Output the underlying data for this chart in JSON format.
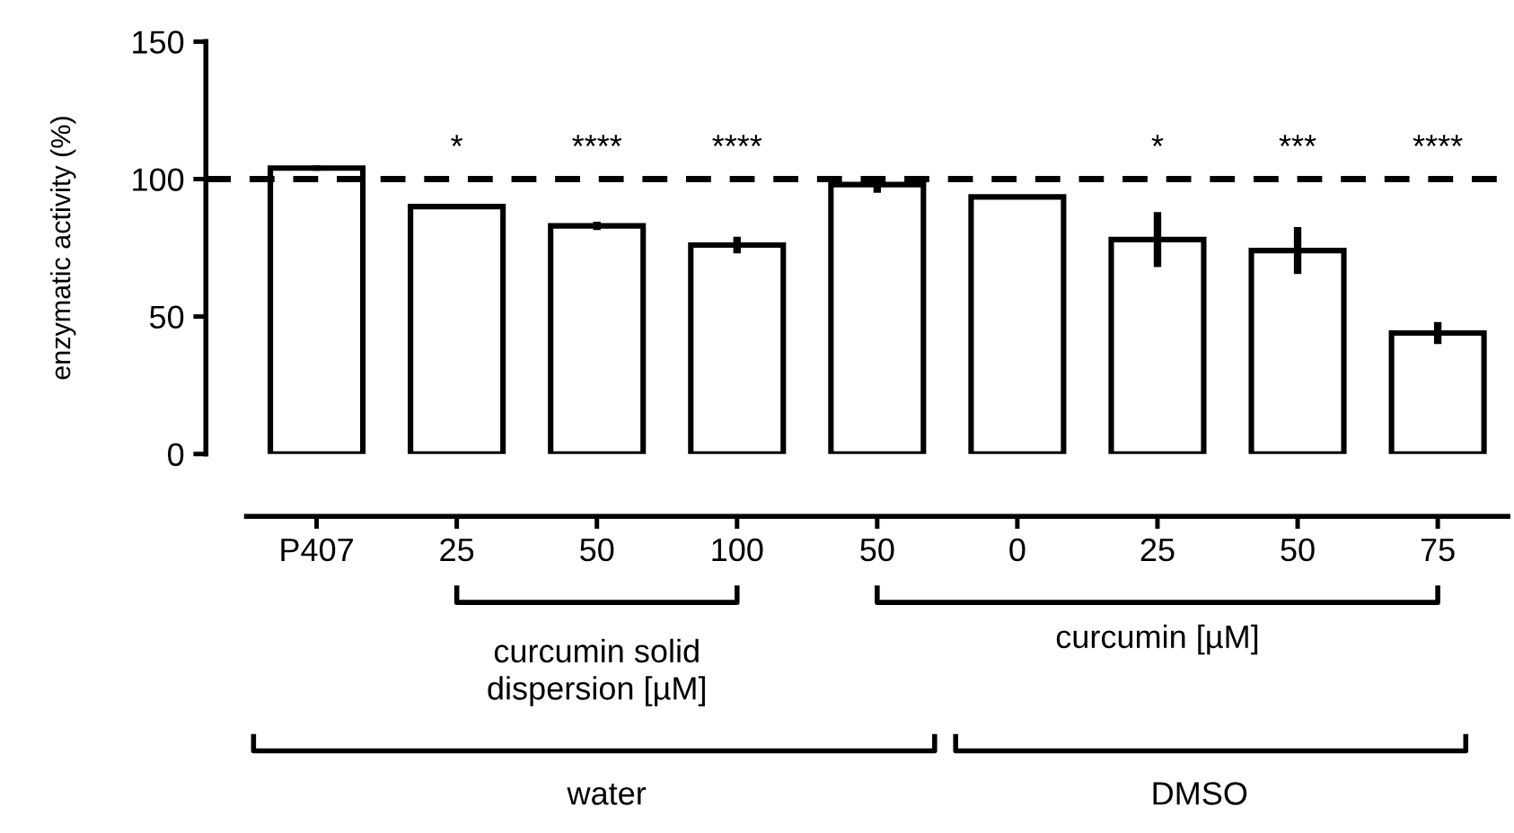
{
  "chart_data": {
    "type": "bar",
    "ylabel": "enzymatic activity (%)",
    "categories": [
      "P407",
      "25",
      "50",
      "100",
      "50",
      "0",
      "25",
      "50",
      "75"
    ],
    "values": [
      104,
      90,
      83,
      76,
      98,
      93.5,
      78,
      74,
      44
    ],
    "errors": [
      1,
      0.5,
      1.5,
      3,
      3,
      null,
      10,
      8.5,
      4
    ],
    "color": "#ffffff",
    "ylim": [
      0,
      150
    ],
    "yticks": [
      0,
      50,
      100,
      150
    ],
    "ref_lines": [
      {
        "axis": "y",
        "value": 100,
        "line_style": "dashed",
        "color": "#000000"
      }
    ],
    "annotations": [
      "*",
      "****",
      "****",
      "*",
      "***",
      "****",
      "curcumin solid\ndispersion [µM]",
      "curcumin [µM]",
      "water",
      "DMSO"
    ],
    "grid": false,
    "legend": false
  }
}
